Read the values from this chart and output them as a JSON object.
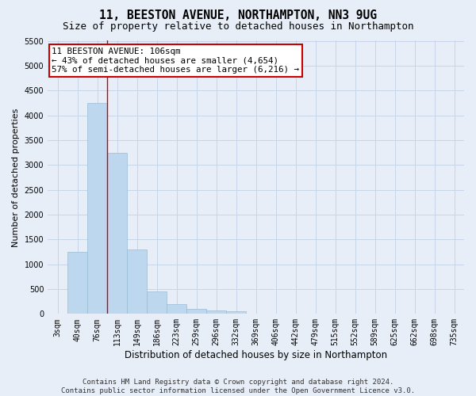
{
  "title": "11, BEESTON AVENUE, NORTHAMPTON, NN3 9UG",
  "subtitle": "Size of property relative to detached houses in Northampton",
  "xlabel": "Distribution of detached houses by size in Northampton",
  "ylabel": "Number of detached properties",
  "footer_line1": "Contains HM Land Registry data © Crown copyright and database right 2024.",
  "footer_line2": "Contains public sector information licensed under the Open Government Licence v3.0.",
  "categories": [
    "3sqm",
    "40sqm",
    "76sqm",
    "113sqm",
    "149sqm",
    "186sqm",
    "223sqm",
    "259sqm",
    "296sqm",
    "332sqm",
    "369sqm",
    "406sqm",
    "442sqm",
    "479sqm",
    "515sqm",
    "552sqm",
    "589sqm",
    "625sqm",
    "662sqm",
    "698sqm",
    "735sqm"
  ],
  "values": [
    0,
    1250,
    4250,
    3250,
    1300,
    450,
    200,
    100,
    70,
    50,
    0,
    0,
    0,
    0,
    0,
    0,
    0,
    0,
    0,
    0,
    0
  ],
  "bar_color": "#bdd7ee",
  "bar_edge_color": "#9abcd6",
  "grid_color": "#c8d4e8",
  "background_color": "#e8eef8",
  "annotation_box_text": "11 BEESTON AVENUE: 106sqm\n← 43% of detached houses are smaller (4,654)\n57% of semi-detached houses are larger (6,216) →",
  "annotation_box_color": "#ffffff",
  "annotation_box_edge_color": "#cc0000",
  "vline_color": "#cc0000",
  "vline_x_index": 2,
  "ylim_max": 5500,
  "ytick_step": 500,
  "title_fontsize": 10.5,
  "subtitle_fontsize": 9,
  "tick_fontsize": 7,
  "ylabel_fontsize": 8,
  "xlabel_fontsize": 8.5,
  "annotation_fontsize": 7.8,
  "footer_fontsize": 6.5
}
